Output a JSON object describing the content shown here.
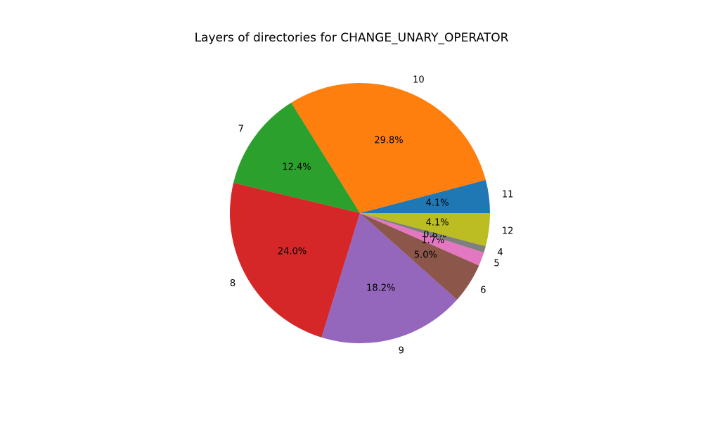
{
  "chart_data": {
    "type": "pie",
    "title": "Layers of directories for CHANGE_UNARY_OPERATOR",
    "slices": [
      {
        "label": "11",
        "value": 4.1,
        "pct_label": "4.1%",
        "color": "#1f77b4"
      },
      {
        "label": "10",
        "value": 29.8,
        "pct_label": "29.8%",
        "color": "#ff7f0e"
      },
      {
        "label": "7",
        "value": 12.4,
        "pct_label": "12.4%",
        "color": "#2ca02c"
      },
      {
        "label": "8",
        "value": 24.0,
        "pct_label": "24.0%",
        "color": "#d62728"
      },
      {
        "label": "9",
        "value": 18.2,
        "pct_label": "18.2%",
        "color": "#9467bd"
      },
      {
        "label": "6",
        "value": 5.0,
        "pct_label": "5.0%",
        "color": "#8c564b"
      },
      {
        "label": "5",
        "value": 1.7,
        "pct_label": "1.7%",
        "color": "#e377c2"
      },
      {
        "label": "4",
        "value": 0.8,
        "pct_label": "0.8%",
        "color": "#7f7f7f"
      },
      {
        "label": "12",
        "value": 4.1,
        "pct_label": "4.1%",
        "color": "#bcbd22"
      }
    ],
    "start_angle_deg": 0,
    "direction": "counterclockwise"
  }
}
